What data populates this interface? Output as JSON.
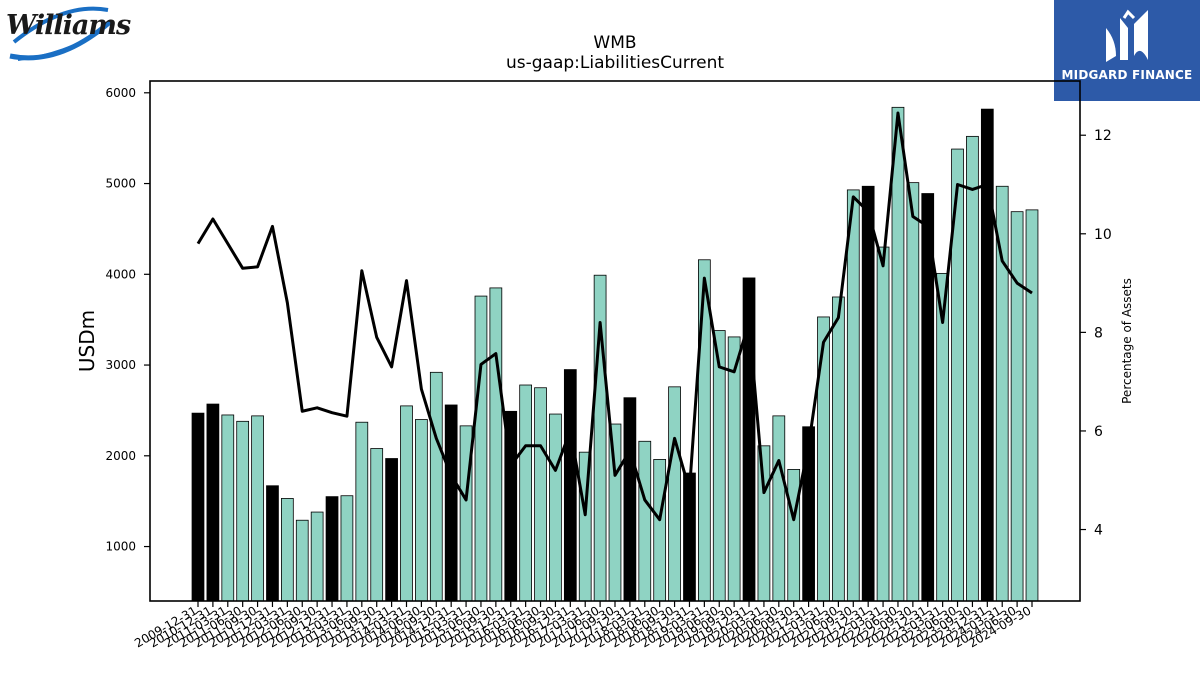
{
  "logos": {
    "left_brand": "Williams",
    "right_brand": "MIDGARD FINANCE"
  },
  "colors": {
    "bar_fill": "#8fd3c3",
    "bar_highlight": "#000000",
    "line": "#000000",
    "brand_blue": "#2d5aa8"
  },
  "chart_data": {
    "type": "bar",
    "title": "WMB",
    "subtitle": "us-gaap:LiabilitiesCurrent",
    "ylabel": "USDm",
    "y2label": "Percentage of Assets",
    "ylim": [
      400,
      6130
    ],
    "y2lim": [
      2.55,
      13.1
    ],
    "yticks": [
      1000,
      2000,
      3000,
      4000,
      5000,
      6000
    ],
    "y2ticks": [
      4,
      6,
      8,
      10,
      12
    ],
    "grid": false,
    "categories": [
      "2009-12-31",
      "2010-12-31",
      "2011-03-31",
      "2011-06-30",
      "2011-09-30",
      "2011-12-31",
      "2012-03-31",
      "2012-06-30",
      "2012-09-30",
      "2012-12-31",
      "2013-03-31",
      "2013-06-30",
      "2013-09-30",
      "2013-12-31",
      "2014-03-31",
      "2014-06-30",
      "2014-09-30",
      "2014-12-31",
      "2015-03-31",
      "2015-06-30",
      "2015-09-30",
      "2015-12-31",
      "2016-03-31",
      "2016-06-30",
      "2016-09-30",
      "2016-12-31",
      "2017-03-31",
      "2017-06-30",
      "2017-09-30",
      "2017-12-31",
      "2018-03-31",
      "2018-06-30",
      "2018-09-30",
      "2018-12-31",
      "2019-03-31",
      "2019-06-30",
      "2019-09-30",
      "2019-12-31",
      "2020-03-31",
      "2020-06-30",
      "2020-09-30",
      "2020-12-31",
      "2021-03-31",
      "2021-06-30",
      "2021-09-30",
      "2021-12-31",
      "2022-03-31",
      "2022-06-30",
      "2022-09-30",
      "2022-12-31",
      "2023-03-31",
      "2023-06-30",
      "2023-09-30",
      "2023-12-31",
      "2024-03-31",
      "2024-06-30",
      "2024-09-30"
    ],
    "x_tick_labels_shown": [
      "2009-12-31",
      "2010-12-31",
      "2011-03-31",
      "2011-06-30",
      "2011-09-30",
      "2011-12-31",
      "2012-03-31",
      "2012-06-30",
      "2012-09-30",
      "2012-12-31",
      "2013-03-31",
      "2013-06-30",
      "2013-09-30",
      "2013-12-31",
      "2014-03-31",
      "2014-06-30",
      "2014-09-30",
      "2014-12-31",
      "2015-03-31",
      "2015-06-30",
      "2015-09-30",
      "2015-12-31",
      "2016-03-31",
      "2016-06-30",
      "2016-09-30",
      "2016-12-31",
      "2017-03-31",
      "2017-06-30",
      "2017-09-30",
      "2017-12-31",
      "2018-03-31",
      "2018-06-30",
      "2018-09-30",
      "2018-12-31",
      "2019-03-31",
      "2019-06-30",
      "2019-09-30",
      "2019-12-31",
      "2020-03-31",
      "2020-06-30",
      "2020-09-30",
      "2020-12-31",
      "2021-03-31",
      "2021-06-30",
      "2021-09-30",
      "2021-12-31",
      "2022-03-31",
      "2022-06-30",
      "2022-09-30",
      "2022-12-31",
      "2023-03-31",
      "2023-06-30",
      "2023-09-30",
      "2023-12-31",
      "2024-03-31",
      "2024-06-30",
      "2024-09-30"
    ],
    "highlight": [
      true,
      true,
      false,
      false,
      false,
      true,
      false,
      false,
      false,
      true,
      false,
      false,
      false,
      true,
      false,
      false,
      false,
      true,
      false,
      false,
      false,
      true,
      false,
      false,
      false,
      true,
      false,
      false,
      false,
      true,
      false,
      false,
      false,
      true,
      false,
      false,
      false,
      true,
      false,
      false,
      false,
      true,
      false,
      false,
      false,
      true,
      false,
      false,
      false,
      true,
      false,
      false,
      false,
      true,
      false,
      false,
      false
    ],
    "series": [
      {
        "kind": "bar",
        "axis": "left",
        "values": [
          2470,
          2570,
          2450,
          2380,
          2440,
          1670,
          1530,
          1290,
          1380,
          1550,
          1560,
          2370,
          2080,
          1970,
          2550,
          2400,
          2920,
          2560,
          2330,
          3760,
          3850,
          2490,
          2780,
          2750,
          2460,
          2950,
          2040,
          3990,
          2350,
          2640,
          2160,
          1960,
          2760,
          1810,
          4160,
          3380,
          3310,
          3960,
          2110,
          2440,
          1850,
          2320,
          3530,
          3750,
          4930,
          4970,
          4300,
          5840,
          5010,
          4890,
          4010,
          5380,
          5520,
          5820,
          4970,
          4690,
          4710
        ]
      },
      {
        "kind": "line",
        "axis": "right",
        "values": [
          9.8,
          10.3,
          9.8,
          9.3,
          9.33,
          10.15,
          8.6,
          6.4,
          6.47,
          6.37,
          6.3,
          9.25,
          7.9,
          7.3,
          9.05,
          6.85,
          5.85,
          5.1,
          4.6,
          7.35,
          7.57,
          5.3,
          5.7,
          5.7,
          5.2,
          6.0,
          4.3,
          8.2,
          5.1,
          5.6,
          4.6,
          4.2,
          5.85,
          4.8,
          9.1,
          7.3,
          7.2,
          8.2,
          4.75,
          5.4,
          4.2,
          5.7,
          7.8,
          8.3,
          10.75,
          10.45,
          9.35,
          12.45,
          10.35,
          10.15,
          8.2,
          11.0,
          10.9,
          11.0,
          9.45,
          9.0,
          8.8
        ]
      }
    ]
  }
}
